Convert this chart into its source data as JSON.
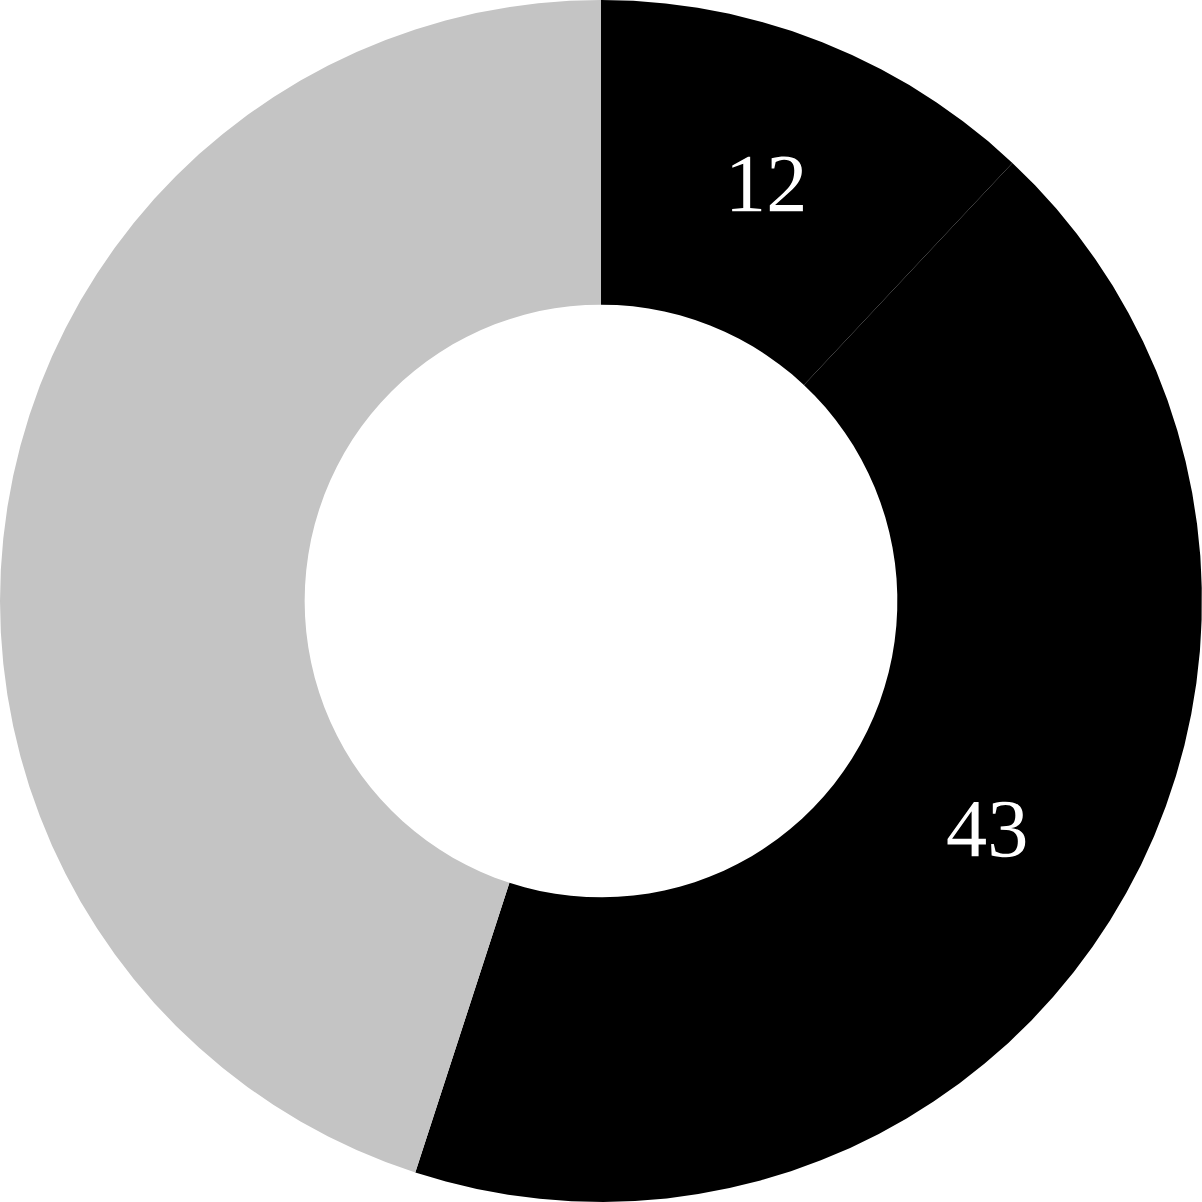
{
  "chart_data": {
    "type": "donut",
    "categories": [
      null,
      null,
      null
    ],
    "values": [
      12,
      43,
      45
    ],
    "colors": [
      "#000000",
      "#000000",
      "#c4c4c4"
    ],
    "value_labels": [
      "12",
      "43",
      null
    ]
  }
}
